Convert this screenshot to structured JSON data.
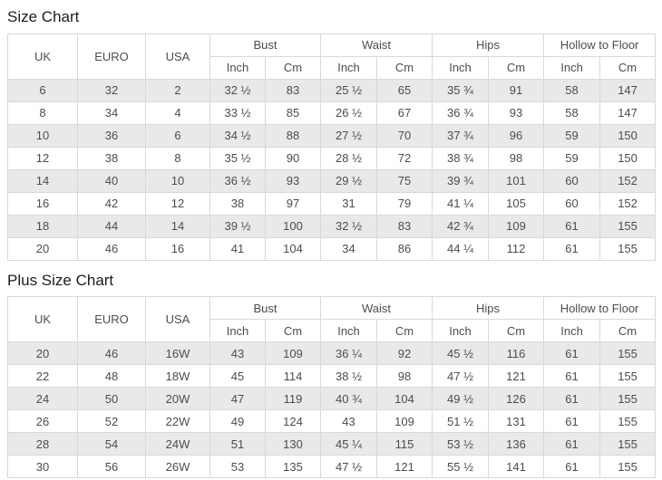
{
  "titles": {
    "size_chart": "Size Chart",
    "plus_size_chart": "Plus Size Chart"
  },
  "columns": {
    "uk": "UK",
    "euro": "EURO",
    "usa": "USA",
    "groups": [
      "Bust",
      "Waist",
      "Hips",
      "Hollow to Floor"
    ],
    "inch": "Inch",
    "cm": "Cm"
  },
  "size_chart": {
    "rows": [
      [
        "6",
        "32",
        "2",
        "32 ½",
        "83",
        "25 ½",
        "65",
        "35 ¾",
        "91",
        "58",
        "147"
      ],
      [
        "8",
        "34",
        "4",
        "33 ½",
        "85",
        "26 ½",
        "67",
        "36 ¾",
        "93",
        "58",
        "147"
      ],
      [
        "10",
        "36",
        "6",
        "34 ½",
        "88",
        "27 ½",
        "70",
        "37 ¾",
        "96",
        "59",
        "150"
      ],
      [
        "12",
        "38",
        "8",
        "35 ½",
        "90",
        "28 ½",
        "72",
        "38 ¾",
        "98",
        "59",
        "150"
      ],
      [
        "14",
        "40",
        "10",
        "36 ½",
        "93",
        "29 ½",
        "75",
        "39 ¾",
        "101",
        "60",
        "152"
      ],
      [
        "16",
        "42",
        "12",
        "38",
        "97",
        "31",
        "79",
        "41 ¼",
        "105",
        "60",
        "152"
      ],
      [
        "18",
        "44",
        "14",
        "39 ½",
        "100",
        "32 ½",
        "83",
        "42 ¾",
        "109",
        "61",
        "155"
      ],
      [
        "20",
        "46",
        "16",
        "41",
        "104",
        "34",
        "86",
        "44 ¼",
        "112",
        "61",
        "155"
      ]
    ]
  },
  "plus_size_chart": {
    "rows": [
      [
        "20",
        "46",
        "16W",
        "43",
        "109",
        "36 ¼",
        "92",
        "45 ½",
        "116",
        "61",
        "155"
      ],
      [
        "22",
        "48",
        "18W",
        "45",
        "114",
        "38 ½",
        "98",
        "47 ½",
        "121",
        "61",
        "155"
      ],
      [
        "24",
        "50",
        "20W",
        "47",
        "119",
        "40 ¾",
        "104",
        "49 ½",
        "126",
        "61",
        "155"
      ],
      [
        "26",
        "52",
        "22W",
        "49",
        "124",
        "43",
        "109",
        "51 ½",
        "131",
        "61",
        "155"
      ],
      [
        "28",
        "54",
        "24W",
        "51",
        "130",
        "45 ¼",
        "115",
        "53 ½",
        "136",
        "61",
        "155"
      ],
      [
        "30",
        "56",
        "26W",
        "53",
        "135",
        "47 ½",
        "121",
        "55 ½",
        "141",
        "61",
        "155"
      ]
    ]
  },
  "colors": {
    "stripe": "#e9e9e9",
    "border": "#d8d8d8",
    "text": "#4d4d4d"
  }
}
